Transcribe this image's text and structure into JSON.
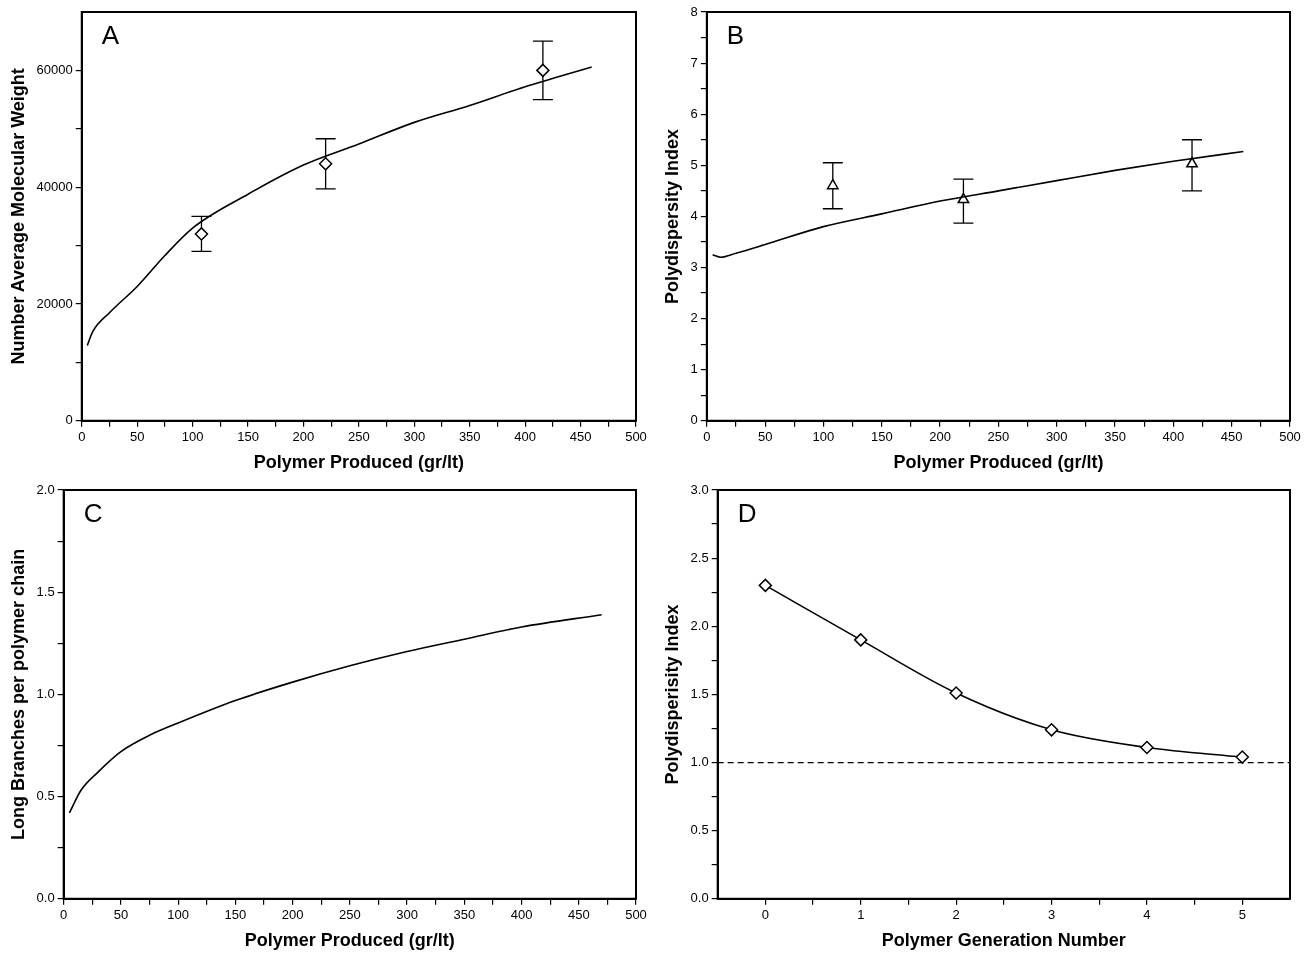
{
  "chart_data": [
    {
      "type": "line",
      "xlabel": "Polymer Produced (gr/lt)",
      "ylabel": "Number Average Molecular Weight",
      "annotations": [
        "A"
      ],
      "xlim": [
        0,
        500
      ],
      "ylim": [
        0,
        70000
      ],
      "xticks": [
        0,
        {
          "value": 25,
          "label": null
        },
        50,
        {
          "value": 75,
          "label": null
        },
        100,
        {
          "value": 125,
          "label": null
        },
        150,
        {
          "value": 175,
          "label": null
        },
        200,
        {
          "value": 225,
          "label": null
        },
        250,
        {
          "value": 275,
          "label": null
        },
        300,
        {
          "value": 325,
          "label": null
        },
        350,
        {
          "value": 375,
          "label": null
        },
        400,
        {
          "value": 425,
          "label": null
        },
        450,
        {
          "value": 475,
          "label": null
        },
        500
      ],
      "yticks": [
        0,
        {
          "value": 10000,
          "label": null
        },
        20000,
        {
          "value": 30000,
          "label": null
        },
        40000,
        {
          "value": 50000,
          "label": null
        },
        60000
      ],
      "grid": false,
      "legend": false,
      "series": [
        {
          "type": "line",
          "color": "#000000",
          "marker": "none",
          "x": [
            5,
            10,
            25,
            50,
            75,
            100,
            150,
            200,
            250,
            300,
            350,
            400,
            460
          ],
          "values": [
            12900,
            15300,
            18500,
            23000,
            28300,
            33000,
            38800,
            43800,
            47400,
            51100,
            54000,
            57200,
            60600
          ]
        },
        {
          "type": "scatter",
          "color": "#000000",
          "marker": "diamond",
          "x": [
            108,
            220,
            416
          ],
          "values": [
            32000,
            44000,
            60000
          ],
          "errors": [
            [
              29000,
              35000
            ],
            [
              39700,
              48300
            ],
            [
              55000,
              65000
            ]
          ]
        }
      ]
    },
    {
      "type": "line",
      "xlabel": "Polymer Produced (gr/lt)",
      "ylabel": "Polydispersity Index",
      "annotations": [
        "B"
      ],
      "xlim": [
        0,
        500
      ],
      "ylim": [
        0,
        8
      ],
      "xticks": [
        0,
        {
          "value": 25,
          "label": null
        },
        50,
        {
          "value": 75,
          "label": null
        },
        100,
        {
          "value": 125,
          "label": null
        },
        150,
        {
          "value": 175,
          "label": null
        },
        200,
        {
          "value": 225,
          "label": null
        },
        250,
        {
          "value": 275,
          "label": null
        },
        300,
        {
          "value": 325,
          "label": null
        },
        350,
        {
          "value": 375,
          "label": null
        },
        400,
        {
          "value": 425,
          "label": null
        },
        450,
        {
          "value": 475,
          "label": null
        },
        500
      ],
      "yticks": [
        0,
        {
          "value": 0.5,
          "label": null
        },
        1,
        {
          "value": 1.5,
          "label": null
        },
        2,
        {
          "value": 2.5,
          "label": null
        },
        3,
        {
          "value": 3.5,
          "label": null
        },
        4,
        {
          "value": 4.5,
          "label": null
        },
        5,
        {
          "value": 5.5,
          "label": null
        },
        6,
        {
          "value": 6.5,
          "label": null
        },
        7,
        {
          "value": 7.5,
          "label": null
        },
        8
      ],
      "grid": false,
      "legend": false,
      "series": [
        {
          "type": "line",
          "color": "#000000",
          "marker": "none",
          "x": [
            5,
            12,
            25,
            50,
            100,
            150,
            200,
            250,
            300,
            350,
            400,
            460
          ],
          "values": [
            3.25,
            3.2,
            3.28,
            3.45,
            3.8,
            4.05,
            4.3,
            4.5,
            4.7,
            4.9,
            5.08,
            5.27
          ]
        },
        {
          "type": "scatter",
          "color": "#000000",
          "marker": "triangle",
          "x": [
            108,
            220,
            416
          ],
          "values": [
            4.6,
            4.33,
            5.03
          ],
          "errors": [
            [
              4.15,
              5.05
            ],
            [
              3.87,
              4.73
            ],
            [
              4.5,
              5.5
            ]
          ]
        }
      ]
    },
    {
      "type": "line",
      "xlabel": "Polymer Produced (gr/lt)",
      "ylabel": "Long Branches per polymer chain",
      "annotations": [
        "C"
      ],
      "xlim": [
        0,
        500
      ],
      "ylim": [
        0,
        2
      ],
      "xticks": [
        0,
        {
          "value": 25,
          "label": null
        },
        50,
        {
          "value": 75,
          "label": null
        },
        100,
        {
          "value": 125,
          "label": null
        },
        150,
        {
          "value": 175,
          "label": null
        },
        200,
        {
          "value": 225,
          "label": null
        },
        250,
        {
          "value": 275,
          "label": null
        },
        300,
        {
          "value": 325,
          "label": null
        },
        350,
        {
          "value": 375,
          "label": null
        },
        400,
        {
          "value": 425,
          "label": null
        },
        450,
        {
          "value": 475,
          "label": null
        },
        500
      ],
      "yticks": [
        {
          "value": 0,
          "label": "0.0"
        },
        {
          "value": 0.25,
          "label": null
        },
        {
          "value": 0.5,
          "label": "0.5"
        },
        {
          "value": 0.75,
          "label": null
        },
        {
          "value": 1,
          "label": "1.0"
        },
        {
          "value": 1.25,
          "label": null
        },
        {
          "value": 1.5,
          "label": "1.5"
        },
        {
          "value": 1.75,
          "label": null
        },
        {
          "value": 2,
          "label": "2.0"
        }
      ],
      "grid": false,
      "legend": false,
      "series": [
        {
          "type": "line",
          "color": "#000000",
          "marker": "none",
          "x": [
            5,
            15,
            30,
            50,
            75,
            100,
            150,
            200,
            250,
            300,
            350,
            400,
            470
          ],
          "values": [
            0.42,
            0.53,
            0.62,
            0.72,
            0.8,
            0.86,
            0.97,
            1.06,
            1.14,
            1.21,
            1.27,
            1.33,
            1.39
          ]
        }
      ]
    },
    {
      "type": "line",
      "xlabel": "Polymer Generation Number",
      "ylabel": "Polydisperisity Index",
      "annotations": [
        "D"
      ],
      "xlim": [
        -0.5,
        5.5
      ],
      "ylim": [
        0,
        3
      ],
      "xticks": [
        0,
        {
          "value": 0.5,
          "label": null
        },
        1,
        {
          "value": 1.5,
          "label": null
        },
        2,
        {
          "value": 2.5,
          "label": null
        },
        3,
        {
          "value": 3.5,
          "label": null
        },
        4,
        {
          "value": 4.5,
          "label": null
        },
        5
      ],
      "yticks": [
        {
          "value": 0,
          "label": "0.0"
        },
        {
          "value": 0.25,
          "label": null
        },
        {
          "value": 0.5,
          "label": "0.5"
        },
        {
          "value": 0.75,
          "label": null
        },
        {
          "value": 1,
          "label": "1.0"
        },
        {
          "value": 1.25,
          "label": null
        },
        {
          "value": 1.5,
          "label": "1.5"
        },
        {
          "value": 1.75,
          "label": null
        },
        {
          "value": 2,
          "label": "2.0"
        },
        {
          "value": 2.25,
          "label": null
        },
        {
          "value": 2.5,
          "label": "2.5"
        },
        {
          "value": 2.75,
          "label": null
        },
        {
          "value": 3,
          "label": "3.0"
        }
      ],
      "grid": false,
      "legend": false,
      "ref_lines": [
        {
          "axis": "y",
          "value": 1,
          "color": "#000000",
          "line_style": "dashed"
        }
      ],
      "series": [
        {
          "type": "line",
          "color": "#000000",
          "marker": "diamond",
          "x": [
            0,
            1,
            2,
            3,
            4,
            5
          ],
          "values": [
            2.3,
            1.9,
            1.51,
            1.24,
            1.11,
            1.04
          ]
        }
      ]
    }
  ]
}
